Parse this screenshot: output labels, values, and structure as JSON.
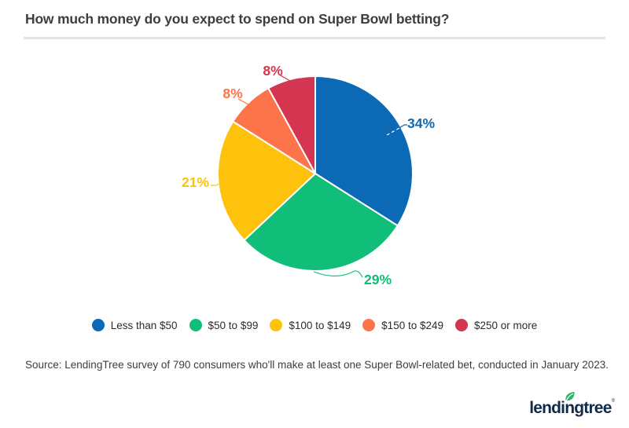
{
  "title": "How much money do you expect to spend on Super Bowl betting?",
  "chart_data": {
    "type": "pie",
    "title": "How much money do you expect to spend on Super Bowl betting?",
    "slices": [
      {
        "label": "Less than $50",
        "value": 34,
        "color": "#0b69b6"
      },
      {
        "label": "$50 to $99",
        "value": 29,
        "color": "#10bd79"
      },
      {
        "label": "$100 to $149",
        "value": 21,
        "color": "#fec20d"
      },
      {
        "label": "$150 to $249",
        "value": 8,
        "color": "#fe744a"
      },
      {
        "label": "$250 or more",
        "value": 8,
        "color": "#d43551"
      }
    ],
    "value_suffix": "%",
    "start_angle_deg": 0,
    "direction": "clockwise",
    "legend_position": "bottom",
    "slice_border_color": "#ffffff"
  },
  "source": "Source: LendingTree survey of 790 consumers who'll make at least one Super Bowl-related bet, conducted in January 2023.",
  "logo": {
    "text": "lendingtree",
    "registered": "®",
    "navy": "#0e2b4a",
    "leaf_green": "#2db66e"
  }
}
